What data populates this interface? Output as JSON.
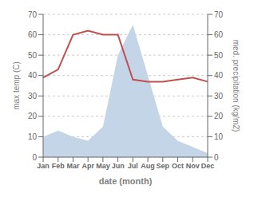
{
  "chart_data": {
    "type": "line",
    "xlabel": "date (month)",
    "ylabel": "max temp (C)",
    "y2label": "med. precipitation (kg/m2)",
    "categories": [
      "Jan",
      "Feb",
      "Mar",
      "Apr",
      "May",
      "Jun",
      "Jul",
      "Aug",
      "Sep",
      "Oct",
      "Nov",
      "Dec"
    ],
    "series": [
      {
        "type": "area",
        "axis": "y2",
        "color": "#c5d5e8",
        "values": [
          10,
          13,
          10,
          8,
          15,
          50,
          65,
          40,
          15,
          8,
          5,
          2
        ]
      },
      {
        "type": "line",
        "color": "#c0504d",
        "values": [
          39,
          43,
          60,
          62,
          60,
          60,
          38,
          37,
          37,
          38,
          39,
          37
        ]
      }
    ],
    "ylim": [
      0,
      70
    ],
    "yticks": [
      0,
      10,
      20,
      30,
      40,
      50,
      60,
      70
    ],
    "y2lim": [
      0,
      70
    ],
    "y2ticks": [
      0,
      10,
      20,
      30,
      40,
      50,
      60,
      70
    ],
    "grid": true
  }
}
